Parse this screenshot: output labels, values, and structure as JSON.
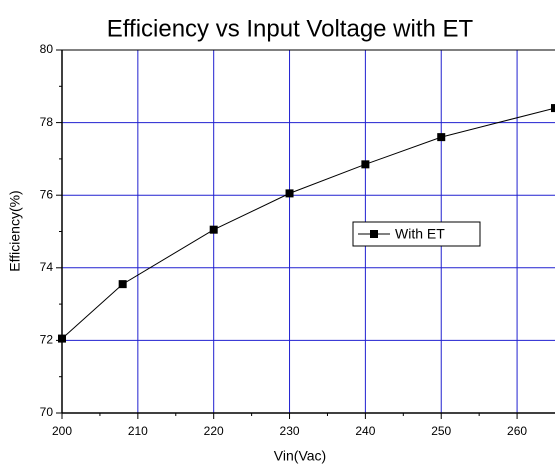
{
  "chart_data": {
    "type": "line",
    "title": "Efficiency vs Input Voltage with ET",
    "x_label": "Vin(Vac)",
    "y_label": "Efficiency(%)",
    "x": [
      200,
      208,
      220,
      230,
      240,
      250,
      265
    ],
    "series": [
      {
        "name": "With ET",
        "color": "#000000",
        "values": [
          72.05,
          73.55,
          75.05,
          76.05,
          76.85,
          77.6,
          78.4
        ]
      }
    ],
    "xlim": [
      200,
      265
    ],
    "ylim": [
      70,
      80
    ],
    "xticks": [
      200,
      210,
      220,
      230,
      240,
      250,
      260
    ],
    "yticks": [
      70,
      72,
      74,
      76,
      78,
      80
    ],
    "minor_xticks": [
      205,
      215,
      225,
      235,
      245,
      255
    ],
    "minor_yticks": [
      71,
      73,
      75,
      77,
      79
    ],
    "grid": true,
    "grid_color": "#2020d0",
    "legend": "center right"
  }
}
